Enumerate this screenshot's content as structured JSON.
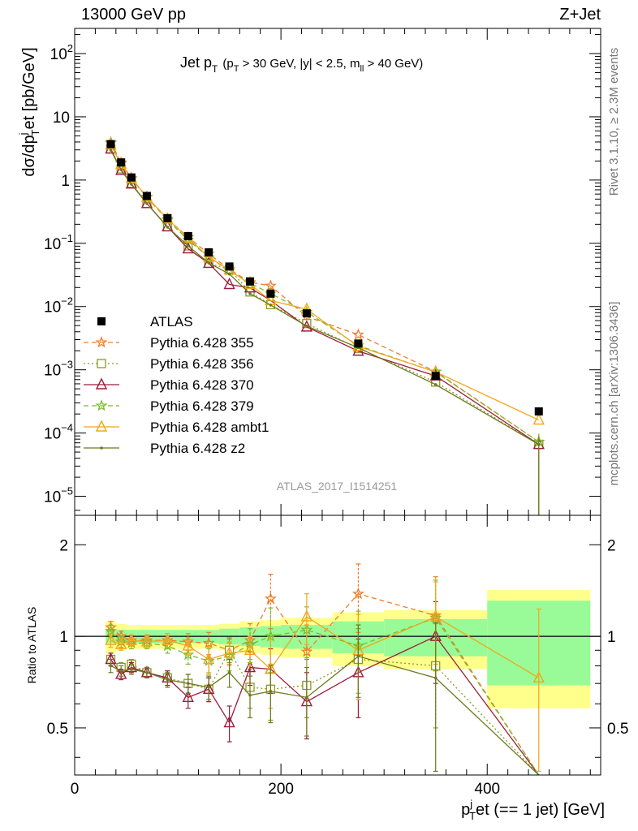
{
  "header": {
    "left": "13000 GeV pp",
    "right": "Z+Jet"
  },
  "plot": {
    "title_main": "Jet p",
    "title_sub": "T",
    "title_cuts_a": "(p",
    "title_cuts_b": "T",
    "title_cuts_c": " > 30 GeV, |y| < 2.5, m",
    "title_cuts_d": "ll",
    "title_cuts_e": " > 40 GeV)",
    "analysis_id": "ATLAS_2017_I1514251",
    "ylabel_a": "dσ/dp",
    "ylabel_sub": "T",
    "ylabel_sup": "j",
    "ylabel_b": "et [pb/GeV]",
    "xlabel_a": "p",
    "xlabel_sub": "T",
    "xlabel_sup": "j",
    "xlabel_b": "et (== 1 jet) [GeV]",
    "ratio_ylabel": "Ratio to ATLAS",
    "side_right_top": "Rivet 3.1.10, ≥ 2.3M events",
    "side_right_bottom": "mcplots.cern.ch [arXiv:1306.3436]"
  },
  "axis_ticks": {
    "main_y": [
      "10^-5",
      "10^-4",
      "10^-3",
      "10^-2",
      "10^-1",
      "1",
      "10",
      "10^2"
    ],
    "main_y_labels": [
      {
        "base": "10",
        "exp": "−5"
      },
      {
        "base": "10",
        "exp": "−4"
      },
      {
        "base": "10",
        "exp": "−3"
      },
      {
        "base": "10",
        "exp": "−2"
      },
      {
        "base": "10",
        "exp": "−1"
      },
      {
        "base": "1",
        "exp": ""
      },
      {
        "base": "10",
        "exp": ""
      },
      {
        "base": "10",
        "exp": "2"
      }
    ],
    "ratio_y": [
      "0.5",
      "1",
      "2"
    ],
    "x": [
      "0",
      "200",
      "400"
    ]
  },
  "chart_data": {
    "type": "scatter",
    "x_range": [
      0,
      510
    ],
    "main_ylim": [
      5e-06,
      250
    ],
    "main_ylog": true,
    "ratio_ylim": [
      0.35,
      2.5
    ],
    "ratio_ylog": true,
    "legend_position": "bottom-left",
    "bin_edges": [
      30,
      40,
      50,
      60,
      80,
      100,
      120,
      140,
      160,
      180,
      200,
      250,
      300,
      400,
      500
    ],
    "x": [
      35,
      45,
      55,
      70,
      90,
      110,
      130,
      150,
      170,
      190,
      225,
      275,
      350,
      450
    ],
    "atlas": {
      "name": "ATLAS",
      "values": [
        3.7,
        1.9,
        1.1,
        0.56,
        0.25,
        0.13,
        0.072,
        0.043,
        0.025,
        0.016,
        0.0078,
        0.0026,
        0.0008,
        0.00022
      ],
      "band_stat": [
        0.05,
        0.05,
        0.05,
        0.05,
        0.05,
        0.05,
        0.05,
        0.06,
        0.07,
        0.08,
        0.09,
        0.12,
        0.14,
        0.31
      ],
      "band_total": [
        0.12,
        0.1,
        0.09,
        0.09,
        0.09,
        0.09,
        0.09,
        0.1,
        0.12,
        0.13,
        0.15,
        0.2,
        0.22,
        0.42
      ]
    },
    "series": [
      {
        "name": "Pythia 6.428 355",
        "color": "#ee7d2b",
        "dash": "6,4",
        "marker": "star",
        "ratio": [
          1.07,
          1.0,
          0.97,
          0.97,
          0.97,
          0.96,
          0.95,
          0.9,
          0.97,
          1.33,
          0.89,
          1.38,
          1.17,
          0.33
        ],
        "ratio_err": [
          0.05,
          0.04,
          0.04,
          0.04,
          0.05,
          0.06,
          0.08,
          0.09,
          0.13,
          0.27,
          0.2,
          0.35,
          0.4,
          0
        ]
      },
      {
        "name": "Pythia 6.428 356",
        "color": "#8a9c1e",
        "dash": "2,3",
        "marker": "open-square",
        "ratio": [
          0.84,
          0.79,
          0.81,
          0.76,
          0.73,
          0.7,
          0.67,
          0.9,
          0.68,
          0.67,
          0.69,
          0.84,
          0.8,
          0.3
        ],
        "ratio_err": [
          0.04,
          0.03,
          0.03,
          0.03,
          0.04,
          0.05,
          0.06,
          0.08,
          0.1,
          0.14,
          0.15,
          0.22,
          0.3,
          0
        ]
      },
      {
        "name": "Pythia 6.428 370",
        "color": "#9c1d3c",
        "dash": "",
        "marker": "open-triangle",
        "ratio": [
          0.84,
          0.75,
          0.79,
          0.76,
          0.73,
          0.63,
          0.67,
          0.52,
          0.79,
          0.78,
          0.61,
          0.76,
          1.0,
          0.3
        ],
        "ratio_err": [
          0.04,
          0.03,
          0.03,
          0.03,
          0.04,
          0.05,
          0.06,
          0.07,
          0.1,
          0.13,
          0.15,
          0.22,
          0.3,
          0
        ]
      },
      {
        "name": "Pythia 6.428 379",
        "color": "#7cbb2a",
        "dash": "6,4",
        "marker": "star",
        "ratio": [
          1.04,
          0.96,
          0.95,
          0.95,
          0.93,
          0.87,
          0.83,
          0.86,
          0.94,
          1.0,
          1.05,
          0.93,
          1.15,
          0.33
        ],
        "ratio_err": [
          0.05,
          0.04,
          0.04,
          0.04,
          0.05,
          0.06,
          0.08,
          0.09,
          0.12,
          0.24,
          0.2,
          0.28,
          0.38,
          0
        ]
      },
      {
        "name": "Pythia 6.428 ambt1",
        "color": "#f3a51a",
        "dash": "",
        "marker": "open-triangle",
        "ratio": [
          0.97,
          0.94,
          0.97,
          0.96,
          0.97,
          0.93,
          0.84,
          0.88,
          0.9,
          0.78,
          1.16,
          0.9,
          1.16,
          0.73
        ],
        "ratio_err": [
          0.05,
          0.04,
          0.04,
          0.04,
          0.05,
          0.06,
          0.08,
          0.08,
          0.1,
          0.2,
          0.22,
          0.28,
          0.35,
          0.5
        ]
      },
      {
        "name": "Pythia 6.428 z2",
        "color": "#6b7a1e",
        "dash": "",
        "marker": "dot",
        "ratio": [
          0.8,
          0.77,
          0.78,
          0.76,
          0.72,
          0.7,
          0.68,
          0.76,
          0.64,
          0.66,
          0.63,
          0.86,
          0.73,
          0.3
        ],
        "ratio_err": [
          0.04,
          0.03,
          0.03,
          0.03,
          0.04,
          0.05,
          0.06,
          0.08,
          0.1,
          0.14,
          0.16,
          0.23,
          0.38,
          0
        ]
      }
    ]
  }
}
